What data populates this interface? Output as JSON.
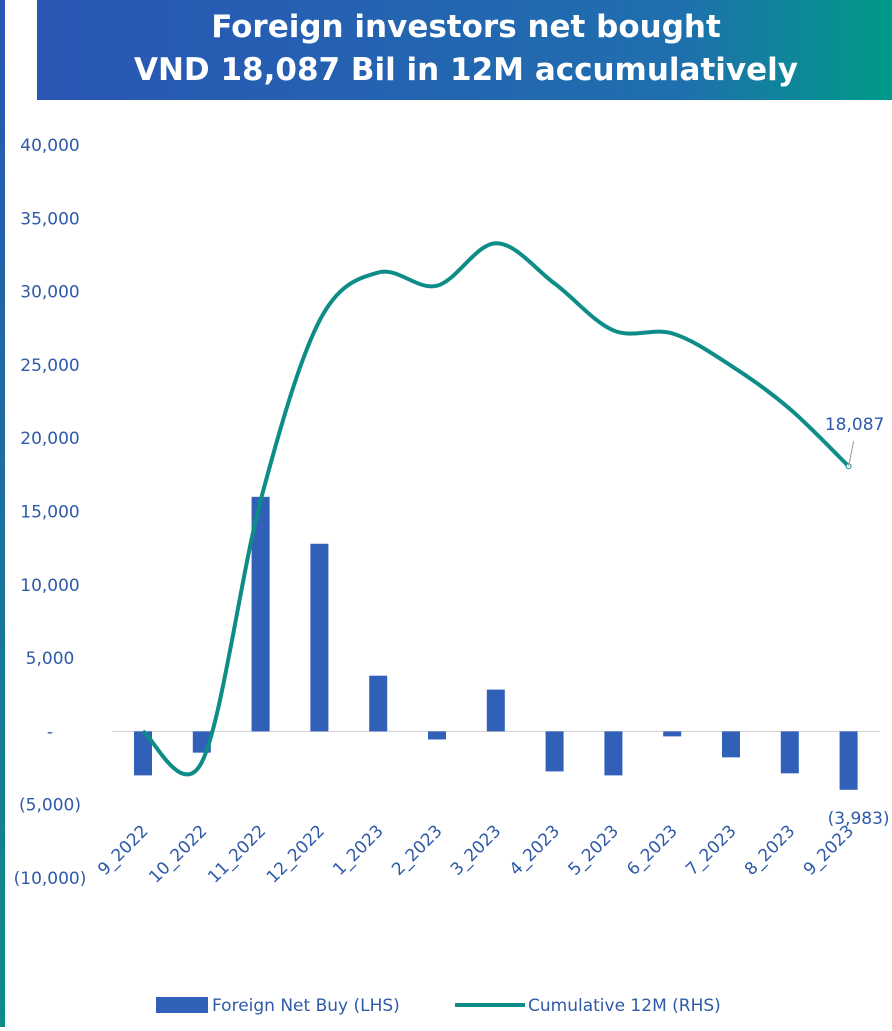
{
  "chart_data": {
    "type": "bar-line",
    "title": [
      "Foreign investors net bought",
      "VND 18,087 Bil in 12M accumulatively"
    ],
    "categories": [
      "9_2022",
      "10_2022",
      "11_2022",
      "12_2022",
      "1_2023",
      "2_2023",
      "3_2023",
      "4_2023",
      "5_2023",
      "6_2023",
      "7_2023",
      "8_2023",
      "9_2023"
    ],
    "series": [
      {
        "name": "Foreign Net Buy (LHS)",
        "type": "bar",
        "color": "#3060b8",
        "values": [
          -3000,
          -1450,
          16000,
          12800,
          3800,
          -550,
          2850,
          -2730,
          -3000,
          -340,
          -1770,
          -2860,
          -3983
        ],
        "value_labels": [
          null,
          null,
          null,
          null,
          null,
          null,
          null,
          null,
          null,
          null,
          null,
          null,
          "(3,983)"
        ]
      },
      {
        "name": "Cumulative 12M (RHS)",
        "type": "line",
        "color": "#0e8c88",
        "values": [
          0,
          -2100,
          15750,
          28000,
          31300,
          30400,
          33300,
          30550,
          27350,
          27150,
          24950,
          22000,
          18087
        ],
        "value_labels": [
          null,
          null,
          null,
          null,
          null,
          null,
          null,
          null,
          null,
          null,
          null,
          null,
          "18,087"
        ]
      }
    ],
    "ylim": [
      -10000,
      40000
    ],
    "yticks": [
      {
        "value": -10000,
        "label": "(10,000)"
      },
      {
        "value": -5000,
        "label": "(5,000)"
      },
      {
        "value": 0,
        "label": "-"
      },
      {
        "value": 5000,
        "label": "5,000"
      },
      {
        "value": 10000,
        "label": "10,000"
      },
      {
        "value": 15000,
        "label": "15,000"
      },
      {
        "value": 20000,
        "label": "20,000"
      },
      {
        "value": 25000,
        "label": "25,000"
      },
      {
        "value": 30000,
        "label": "30,000"
      },
      {
        "value": 35000,
        "label": "35,000"
      },
      {
        "value": 40000,
        "label": "40,000"
      }
    ],
    "grid": false
  }
}
